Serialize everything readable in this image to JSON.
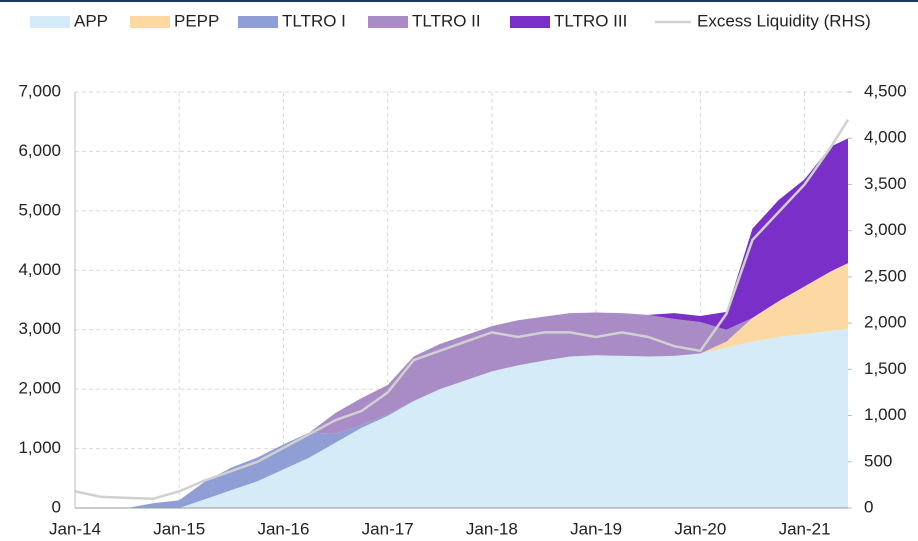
{
  "chart_data": {
    "type": "area",
    "stacked": true,
    "x": [
      "2014-01",
      "2014-04",
      "2014-07",
      "2014-10",
      "2015-01",
      "2015-04",
      "2015-07",
      "2015-10",
      "2016-01",
      "2016-04",
      "2016-07",
      "2016-10",
      "2017-01",
      "2017-04",
      "2017-07",
      "2017-10",
      "2018-01",
      "2018-04",
      "2018-07",
      "2018-10",
      "2019-01",
      "2019-04",
      "2019-07",
      "2019-10",
      "2020-01",
      "2020-04",
      "2020-07",
      "2020-10",
      "2021-01",
      "2021-04",
      "2021-06"
    ],
    "xlim": [
      "2014-01",
      "2021-06"
    ],
    "xticks": [
      {
        "value": "2014-01",
        "label": "Jan-14"
      },
      {
        "value": "2015-01",
        "label": "Jan-15"
      },
      {
        "value": "2016-01",
        "label": "Jan-16"
      },
      {
        "value": "2017-01",
        "label": "Jan-17"
      },
      {
        "value": "2018-01",
        "label": "Jan-18"
      },
      {
        "value": "2019-01",
        "label": "Jan-19"
      },
      {
        "value": "2020-01",
        "label": "Jan-20"
      },
      {
        "value": "2021-01",
        "label": "Jan-21"
      }
    ],
    "ylim": [
      0,
      7000
    ],
    "yticks": [
      0,
      {
        "value": 1000,
        "label": "1,000"
      },
      {
        "value": 2000,
        "label": "2,000"
      },
      {
        "value": 3000,
        "label": "3,000"
      },
      {
        "value": 4000,
        "label": "4,000"
      },
      {
        "value": 5000,
        "label": "5,000"
      },
      {
        "value": 6000,
        "label": "6,000"
      },
      {
        "value": 7000,
        "label": "7,000"
      }
    ],
    "y2lim": [
      0,
      4500
    ],
    "y2ticks": [
      0,
      500,
      {
        "value": 1000,
        "label": "1,000"
      },
      {
        "value": 1500,
        "label": "1,500"
      },
      {
        "value": 2000,
        "label": "2,000"
      },
      {
        "value": 2500,
        "label": "2,500"
      },
      {
        "value": 3000,
        "label": "3,000"
      },
      {
        "value": 3500,
        "label": "3,500"
      },
      {
        "value": 4000,
        "label": "4,000"
      },
      {
        "value": 4500,
        "label": "4,500"
      }
    ],
    "grid": true,
    "legend": "top",
    "series": [
      {
        "name": "APP",
        "color": "#d5ebf7",
        "values": [
          0,
          0,
          0,
          0,
          0,
          150,
          300,
          450,
          650,
          850,
          1100,
          1350,
          1550,
          1800,
          2000,
          2150,
          2300,
          2400,
          2480,
          2550,
          2570,
          2560,
          2550,
          2560,
          2600,
          2700,
          2800,
          2880,
          2930,
          2980,
          3020
        ]
      },
      {
        "name": "PEPP",
        "color": "#fcd9a2",
        "values": [
          0,
          0,
          0,
          0,
          0,
          0,
          0,
          0,
          0,
          0,
          0,
          0,
          0,
          0,
          0,
          0,
          0,
          0,
          0,
          0,
          0,
          0,
          0,
          0,
          0,
          100,
          400,
          600,
          800,
          1000,
          1100
        ]
      },
      {
        "name": "TLTRO I",
        "color": "#8f9fd6",
        "values": [
          0,
          0,
          0,
          80,
          130,
          300,
          380,
          400,
          420,
          420,
          150,
          50,
          20,
          0,
          0,
          0,
          0,
          0,
          0,
          0,
          0,
          0,
          0,
          0,
          0,
          0,
          0,
          0,
          0,
          0,
          0
        ]
      },
      {
        "name": "TLTRO II",
        "color": "#a98cc6",
        "values": [
          0,
          0,
          0,
          0,
          0,
          0,
          0,
          0,
          0,
          0,
          350,
          450,
          500,
          750,
          760,
          760,
          760,
          760,
          740,
          730,
          720,
          720,
          700,
          620,
          530,
          200,
          0,
          0,
          0,
          0,
          0
        ]
      },
      {
        "name": "TLTRO III",
        "color": "#7b2fc9",
        "values": [
          0,
          0,
          0,
          0,
          0,
          0,
          0,
          0,
          0,
          0,
          0,
          0,
          0,
          0,
          0,
          0,
          0,
          0,
          0,
          0,
          0,
          0,
          0,
          100,
          100,
          300,
          1500,
          1700,
          1800,
          2100,
          2100
        ]
      },
      {
        "name": "Excess Liquidity (RHS)",
        "color": "#d0d0d0",
        "axis": "y2",
        "type": "line",
        "values": [
          180,
          120,
          110,
          100,
          180,
          300,
          400,
          500,
          650,
          800,
          950,
          1050,
          1250,
          1600,
          1700,
          1800,
          1900,
          1850,
          1900,
          1900,
          1850,
          1900,
          1850,
          1750,
          1700,
          2100,
          2900,
          3200,
          3500,
          3900,
          4200
        ]
      }
    ]
  }
}
